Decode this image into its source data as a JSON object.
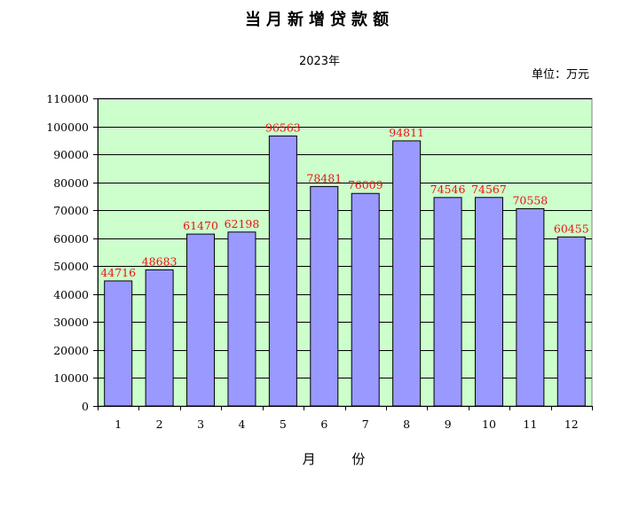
{
  "chart_data": {
    "type": "bar",
    "title": "当月新增贷款额",
    "subtitle": "2023年",
    "unit_label": "单位：万元",
    "xlabel": "月 份",
    "ylabel": "",
    "categories": [
      "1",
      "2",
      "3",
      "4",
      "5",
      "6",
      "7",
      "8",
      "9",
      "10",
      "11",
      "12"
    ],
    "values": [
      44716,
      48683,
      61470,
      62198,
      96563,
      78481,
      76009,
      94811,
      74546,
      74567,
      70558,
      60455
    ],
    "ylim": [
      0,
      110000
    ],
    "yticks": [
      0,
      10000,
      20000,
      30000,
      40000,
      50000,
      60000,
      70000,
      80000,
      90000,
      100000,
      110000
    ],
    "grid": true,
    "legend": "none",
    "colors": {
      "plot_background": "#ccffcc",
      "bar_fill": "#9999ff",
      "bar_stroke": "#000000",
      "data_label": "#ee1111",
      "gridline": "#000000"
    }
  }
}
